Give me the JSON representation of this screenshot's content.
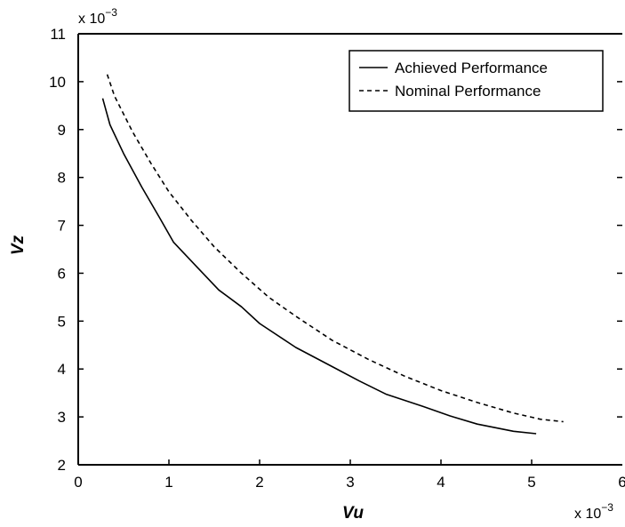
{
  "chart_data": {
    "type": "line",
    "title": "",
    "xlabel": "Vu",
    "ylabel": "Vz",
    "xlim": [
      0,
      6
    ],
    "ylim": [
      2,
      11
    ],
    "x_ticks": [
      "0",
      "1",
      "2",
      "3",
      "4",
      "5",
      "6"
    ],
    "y_ticks": [
      "2",
      "3",
      "4",
      "5",
      "6",
      "7",
      "8",
      "9",
      "10",
      "11"
    ],
    "x_scale_note": "x 10",
    "x_scale_exp": "−3",
    "y_scale_note": "x 10",
    "y_scale_exp": "−3",
    "grid": false,
    "legend_position": "top-right",
    "series": [
      {
        "name": "Achieved Performance",
        "style": "solid",
        "color": "#000000",
        "x": [
          0.27,
          0.35,
          0.5,
          0.7,
          0.9,
          1.05,
          1.3,
          1.55,
          1.8,
          2.0,
          2.4,
          2.8,
          3.1,
          3.4,
          3.8,
          4.1,
          4.4,
          4.8,
          5.05
        ],
        "y": [
          9.65,
          9.1,
          8.5,
          7.8,
          7.15,
          6.65,
          6.15,
          5.65,
          5.3,
          4.95,
          4.45,
          4.05,
          3.75,
          3.47,
          3.22,
          3.02,
          2.85,
          2.7,
          2.65
        ]
      },
      {
        "name": "Nominal Performance",
        "style": "dashed",
        "color": "#000000",
        "x": [
          0.32,
          0.4,
          0.6,
          0.8,
          1.0,
          1.25,
          1.5,
          1.8,
          2.1,
          2.4,
          2.8,
          3.2,
          3.6,
          4.0,
          4.4,
          4.8,
          5.1,
          5.35
        ],
        "y": [
          10.15,
          9.7,
          8.95,
          8.3,
          7.7,
          7.1,
          6.55,
          6.0,
          5.5,
          5.1,
          4.6,
          4.2,
          3.85,
          3.55,
          3.3,
          3.08,
          2.95,
          2.9
        ]
      }
    ]
  }
}
